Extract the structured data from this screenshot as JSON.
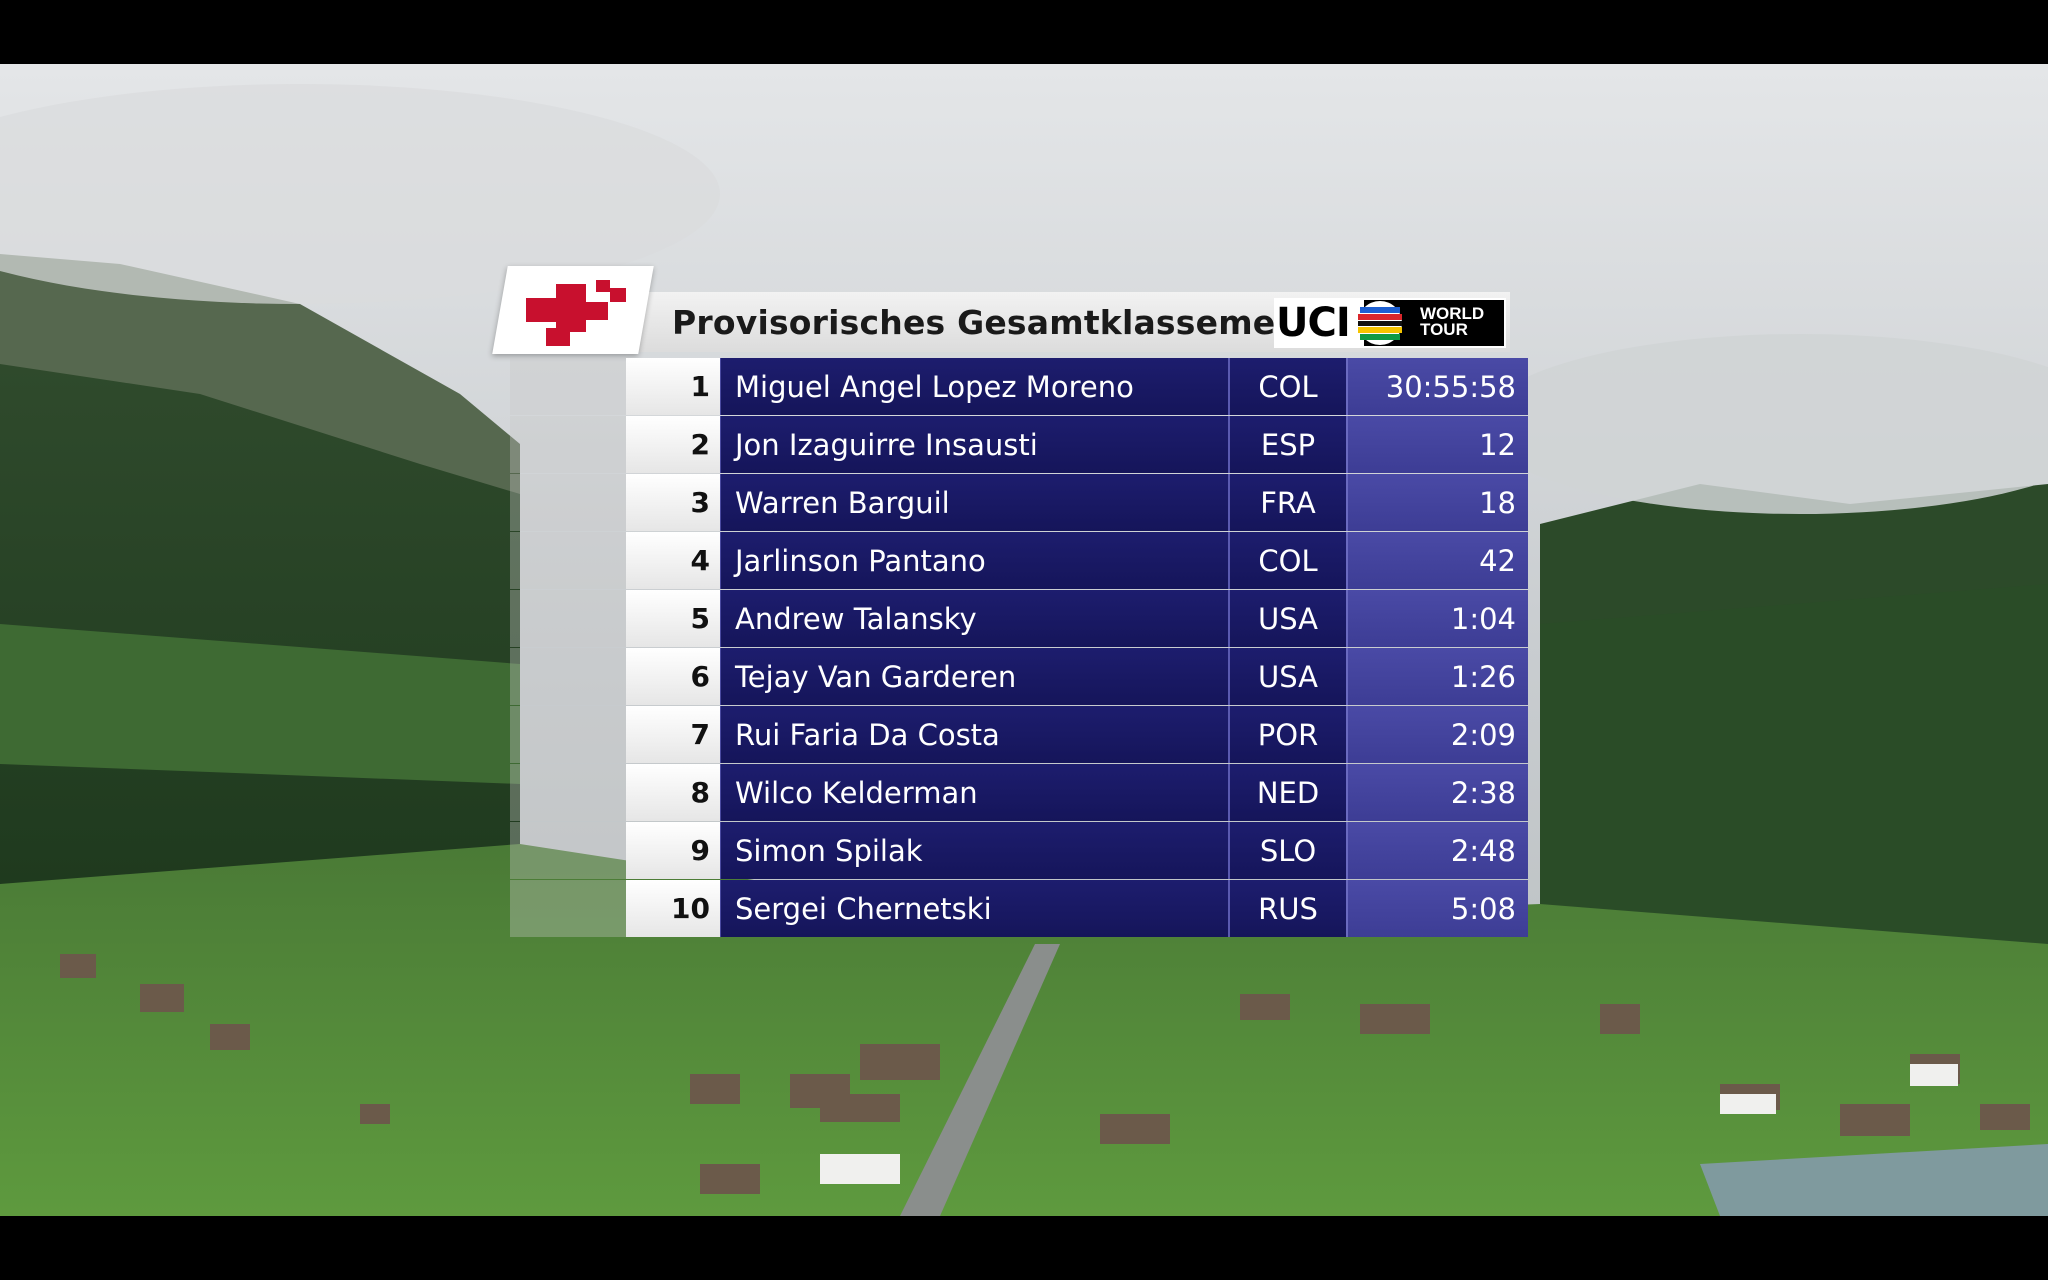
{
  "broadcast": {
    "title": "Provisorisches Gesamtklassement",
    "sponsor": {
      "uci_label": "UCI",
      "world_tour_line1": "WORLD",
      "world_tour_line2": "TOUR"
    },
    "logo_icon": "tour-de-suisse-cross-icon"
  },
  "standings": [
    {
      "rank": "1",
      "name": "Miguel Angel Lopez Moreno",
      "nation": "COL",
      "time": "30:55:58"
    },
    {
      "rank": "2",
      "name": "Jon Izaguirre Insausti",
      "nation": "ESP",
      "time": "12"
    },
    {
      "rank": "3",
      "name": "Warren Barguil",
      "nation": "FRA",
      "time": "18"
    },
    {
      "rank": "4",
      "name": "Jarlinson Pantano",
      "nation": "COL",
      "time": "42"
    },
    {
      "rank": "5",
      "name": "Andrew Talansky",
      "nation": "USA",
      "time": "1:04"
    },
    {
      "rank": "6",
      "name": "Tejay Van Garderen",
      "nation": "USA",
      "time": "1:26"
    },
    {
      "rank": "7",
      "name": "Rui Faria Da Costa",
      "nation": "POR",
      "time": "2:09"
    },
    {
      "rank": "8",
      "name": "Wilco Kelderman",
      "nation": "NED",
      "time": "2:38"
    },
    {
      "rank": "9",
      "name": "Simon Spilak",
      "nation": "SLO",
      "time": "2:48"
    },
    {
      "rank": "10",
      "name": "Sergei Chernetski",
      "nation": "RUS",
      "time": "5:08"
    }
  ],
  "colors": {
    "name_cell": "#1d1d6e",
    "time_cell": "#4a4aa6",
    "logo_red": "#c8102e"
  }
}
